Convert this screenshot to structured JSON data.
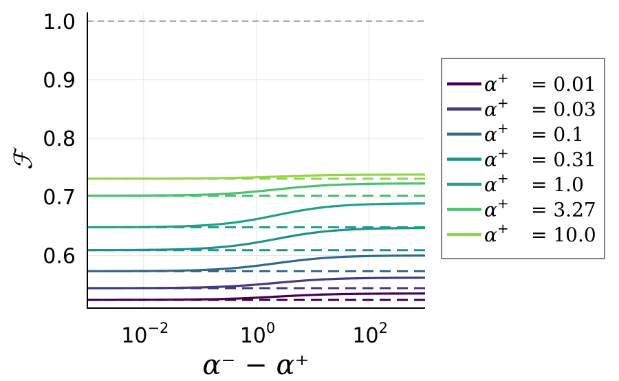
{
  "chart_data": {
    "type": "line",
    "xscale": "log",
    "xlabel": "α⁻ − α⁺",
    "ylabel": "ℱ",
    "xlim": [
      0.001,
      1000
    ],
    "ylim": [
      0.51,
      1.015
    ],
    "xticks": [
      0.01,
      1,
      100
    ],
    "xtick_labels": [
      {
        "base": "10",
        "exp": "−2"
      },
      {
        "base": "10",
        "exp": "0"
      },
      {
        "base": "10",
        "exp": "2"
      }
    ],
    "yticks": [
      "0.6",
      "0.7",
      "0.8",
      "0.9",
      "1.0"
    ],
    "reference_line": {
      "y": 1.0,
      "style": "dashed",
      "color": "#999999"
    },
    "grid": true,
    "legend_position": "right",
    "series": [
      {
        "name": "α⁺ = 0.01",
        "legend_value": "0.01",
        "color": "#440154",
        "solid_start": 0.524,
        "solid_end": 0.535,
        "dashed": 0.524
      },
      {
        "name": "α⁺ = 0.03",
        "legend_value": "0.03",
        "color": "#443983",
        "solid_start": 0.544,
        "solid_end": 0.562,
        "dashed": 0.544
      },
      {
        "name": "α⁺ = 0.1",
        "legend_value": "0.1",
        "color": "#31688e",
        "solid_start": 0.573,
        "solid_end": 0.6,
        "dashed": 0.573
      },
      {
        "name": "α⁺ = 0.31",
        "legend_value": "0.31",
        "color": "#21908d",
        "solid_start": 0.609,
        "solid_end": 0.647,
        "dashed": 0.609
      },
      {
        "name": "α⁺ = 1.0",
        "legend_value": "1.0",
        "color": "#1fa187",
        "solid_start": 0.648,
        "solid_end": 0.689,
        "dashed": 0.648
      },
      {
        "name": "α⁺ = 3.27",
        "legend_value": "3.27",
        "color": "#4ac16d",
        "solid_start": 0.702,
        "solid_end": 0.723,
        "dashed": 0.702
      },
      {
        "name": "α⁺ = 10.0",
        "legend_value": "10.0",
        "color": "#8fd744",
        "solid_start": 0.731,
        "solid_end": 0.738,
        "dashed": 0.731
      }
    ]
  }
}
